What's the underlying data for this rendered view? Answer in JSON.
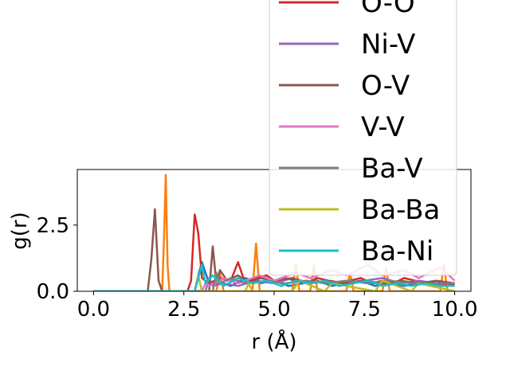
{
  "chart_data": {
    "type": "line",
    "xlabel": "r (Å)",
    "ylabel": "g(r)",
    "xlim": [
      -0.45,
      10.45
    ],
    "ylim": [
      0.0,
      4.6
    ],
    "xticks": [
      0.0,
      2.5,
      5.0,
      7.5,
      10.0
    ],
    "xtick_labels": [
      "0.0",
      "2.5",
      "5.0",
      "7.5",
      "10.0"
    ],
    "yticks": [
      0.0,
      2.5
    ],
    "ytick_labels": [
      "0.0",
      "2.5"
    ],
    "grid": false,
    "legend_position": "upper-right",
    "series": [
      {
        "name": "O-O",
        "color": "#d62728",
        "x": [
          0.0,
          2.6,
          2.7,
          2.8,
          2.9,
          3.0,
          3.2,
          3.5,
          3.8,
          4.0,
          4.2,
          4.5,
          4.8,
          5.0,
          5.3,
          5.6,
          5.9,
          6.2,
          6.5,
          6.8,
          7.1,
          7.4,
          7.7,
          8.0,
          8.3,
          8.6,
          8.9,
          9.2,
          9.5,
          9.8,
          10.0
        ],
        "y": [
          0.0,
          0.0,
          0.4,
          2.9,
          2.2,
          0.5,
          0.3,
          0.5,
          0.4,
          1.1,
          0.3,
          0.5,
          0.6,
          0.4,
          0.5,
          0.4,
          0.3,
          0.5,
          0.4,
          0.3,
          0.4,
          0.5,
          0.3,
          0.4,
          0.3,
          0.5,
          0.4,
          0.3,
          0.4,
          0.2,
          0.3
        ]
      },
      {
        "name": "Ni-V",
        "color": "#9467bd",
        "x": [
          0.0,
          3.1,
          3.2,
          3.3,
          3.6,
          4.0,
          4.5,
          5.0,
          5.5,
          6.0,
          6.5,
          7.0,
          7.5,
          8.0,
          8.5,
          9.0,
          9.5,
          10.0
        ],
        "y": [
          0.0,
          0.0,
          0.5,
          0.2,
          0.3,
          0.2,
          0.4,
          0.3,
          0.5,
          0.3,
          0.4,
          0.3,
          0.4,
          0.5,
          0.3,
          0.4,
          0.3,
          0.3
        ]
      },
      {
        "name": "O-V",
        "color": "#8c564b",
        "x": [
          0.0,
          1.5,
          1.6,
          1.7,
          1.8,
          1.9,
          3.2,
          3.3,
          3.4,
          3.5,
          3.7,
          4.0,
          4.3,
          4.6,
          5.0,
          5.5,
          6.0,
          6.5,
          7.0,
          7.5,
          8.0,
          8.5,
          9.0,
          9.5,
          10.0
        ],
        "y": [
          0.0,
          0.0,
          1.2,
          3.1,
          0.4,
          0.0,
          0.0,
          1.7,
          0.3,
          0.8,
          0.4,
          0.6,
          0.3,
          0.5,
          0.4,
          0.5,
          0.3,
          0.4,
          0.3,
          0.4,
          0.3,
          0.4,
          0.3,
          0.4,
          0.3
        ]
      },
      {
        "name": "V-V",
        "color": "#e377c2",
        "x": [
          0.0,
          3.0,
          3.1,
          3.2,
          3.6,
          4.0,
          4.6,
          5.0,
          5.6,
          6.0,
          6.6,
          7.0,
          7.6,
          8.0,
          8.6,
          9.0,
          9.6,
          10.0
        ],
        "y": [
          0.0,
          0.0,
          0.3,
          0.2,
          0.5,
          0.3,
          0.6,
          0.4,
          0.7,
          0.5,
          0.8,
          0.6,
          1.0,
          0.6,
          0.8,
          0.5,
          0.9,
          0.4
        ]
      },
      {
        "name": "Ba-V",
        "color": "#7f7f7f",
        "x": [
          0.0,
          3.3,
          3.4,
          3.5,
          3.8,
          4.2,
          4.8,
          5.3,
          5.9,
          6.4,
          7.0,
          7.6,
          8.2,
          8.8,
          9.4,
          10.0
        ],
        "y": [
          0.0,
          0.0,
          0.7,
          0.3,
          0.5,
          0.3,
          0.4,
          0.3,
          0.4,
          0.3,
          0.4,
          0.3,
          0.4,
          0.3,
          0.3,
          0.3
        ]
      },
      {
        "name": "Ba-Ba",
        "color": "#bcbd22",
        "x": [
          0.0,
          2.8,
          2.9,
          3.0,
          3.1,
          4.2,
          4.3,
          4.4,
          5.5,
          5.7,
          6.4,
          6.6,
          7.8,
          8.0,
          8.8,
          9.0,
          10.0
        ],
        "y": [
          0.0,
          0.0,
          0.6,
          0.0,
          0.0,
          0.0,
          0.3,
          0.0,
          0.0,
          0.4,
          0.0,
          0.3,
          0.0,
          0.4,
          0.0,
          0.3,
          0.0
        ]
      },
      {
        "name": "Ba-Ni",
        "color": "#17becf",
        "x": [
          0.0,
          2.8,
          2.9,
          3.0,
          3.1,
          3.3,
          3.6,
          4.0,
          4.4,
          4.8,
          5.2,
          5.6,
          6.0,
          6.4,
          6.8,
          7.2,
          7.6,
          8.0,
          8.4,
          8.8,
          9.2,
          9.6,
          10.0
        ],
        "y": [
          0.0,
          0.0,
          0.5,
          1.0,
          0.3,
          0.6,
          0.2,
          0.5,
          0.3,
          0.4,
          0.2,
          0.4,
          0.3,
          0.4,
          0.2,
          0.3,
          0.4,
          0.2,
          0.3,
          0.2,
          0.3,
          0.2,
          0.2
        ]
      }
    ],
    "unlabeled_series": [
      {
        "color": "#1f77b4",
        "x": [
          0.0,
          2.8,
          2.9,
          3.0,
          3.2,
          3.4,
          3.8,
          4.2,
          4.6,
          5.0,
          5.4,
          5.8,
          6.2,
          6.6,
          7.0,
          7.4,
          7.8,
          8.2,
          8.6,
          9.0,
          9.4,
          9.8,
          10.0
        ],
        "y": [
          0.0,
          0.0,
          0.6,
          1.1,
          0.3,
          0.4,
          0.2,
          0.5,
          0.3,
          0.4,
          0.2,
          0.3,
          0.4,
          0.2,
          0.3,
          0.4,
          0.2,
          0.3,
          0.2,
          0.3,
          0.2,
          0.3,
          0.2
        ]
      },
      {
        "color": "#ff7f0e",
        "x": [
          0.0,
          1.9,
          1.95,
          2.0,
          2.05,
          2.1,
          3.4,
          3.5,
          3.6,
          4.4,
          4.5,
          4.6,
          5.5,
          5.6,
          5.7,
          6.0,
          6.1,
          6.2,
          7.0,
          7.1,
          7.2,
          8.0,
          8.1,
          8.2,
          9.6,
          9.7,
          9.8,
          10.0
        ],
        "y": [
          0.0,
          0.0,
          2.0,
          4.4,
          1.0,
          0.0,
          0.0,
          0.7,
          0.0,
          0.0,
          1.8,
          0.0,
          0.0,
          1.0,
          0.0,
          0.0,
          1.0,
          0.0,
          0.0,
          0.7,
          0.0,
          0.0,
          0.9,
          0.0,
          0.0,
          1.0,
          0.0,
          0.0
        ]
      }
    ]
  }
}
